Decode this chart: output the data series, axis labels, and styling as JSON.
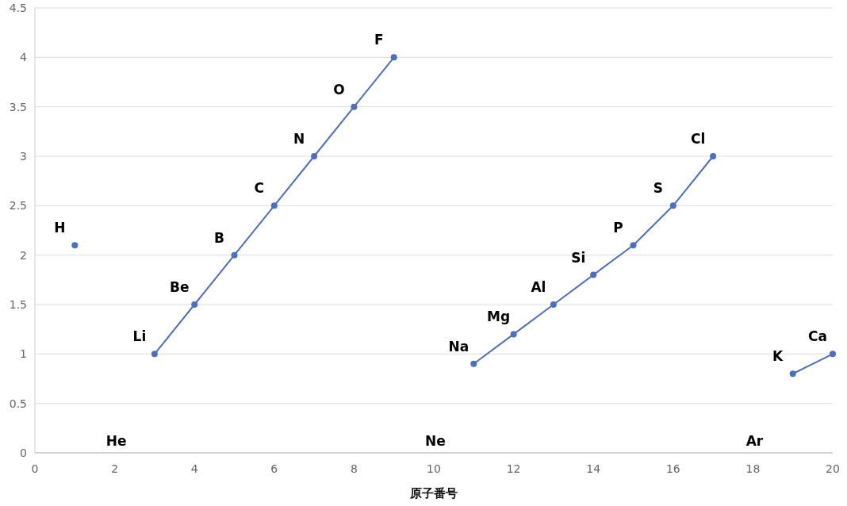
{
  "chart_data": {
    "type": "line",
    "xlabel": "原子番号",
    "x": [
      1,
      2,
      3,
      4,
      5,
      6,
      7,
      8,
      9,
      10,
      11,
      12,
      13,
      14,
      15,
      16,
      17,
      18,
      19,
      20
    ],
    "series": [
      {
        "color": "#4e6fbd",
        "values": [
          2.1,
          null,
          1.0,
          1.5,
          2.0,
          2.5,
          3.0,
          3.5,
          4.0,
          null,
          0.9,
          1.2,
          1.5,
          1.8,
          2.1,
          2.5,
          3.0,
          null,
          0.8,
          1.0
        ]
      }
    ],
    "xlim": [
      0,
      20
    ],
    "ylim": [
      0,
      4.5
    ],
    "xticks": [
      0,
      2,
      4,
      6,
      8,
      10,
      12,
      14,
      16,
      18,
      20
    ],
    "yticks": [
      0,
      0.5,
      1,
      1.5,
      2,
      2.5,
      3,
      3.5,
      4,
      4.5
    ],
    "grid": "y",
    "marker": "circle",
    "line_style": "solid",
    "annotations": [
      {
        "text": "H",
        "x": 1,
        "y": 2.1
      },
      "He",
      {
        "text": "Li",
        "x": 3,
        "y": 1.0
      },
      {
        "text": "Be",
        "x": 4,
        "y": 1.5
      },
      {
        "text": "B",
        "x": 5,
        "y": 2.0
      },
      {
        "text": "C",
        "x": 6,
        "y": 2.5
      },
      {
        "text": "N",
        "x": 7,
        "y": 3.0
      },
      {
        "text": "O",
        "x": 8,
        "y": 3.5
      },
      {
        "text": "F",
        "x": 9,
        "y": 4.0
      },
      "Ne",
      {
        "text": "Na",
        "x": 11,
        "y": 0.9
      },
      {
        "text": "Mg",
        "x": 12,
        "y": 1.2
      },
      {
        "text": "Al",
        "x": 13,
        "y": 1.5
      },
      {
        "text": "Si",
        "x": 14,
        "y": 1.8
      },
      {
        "text": "P",
        "x": 15,
        "y": 2.1
      },
      {
        "text": "S",
        "x": 16,
        "y": 2.5
      },
      {
        "text": "Cl",
        "x": 17,
        "y": 3.0
      },
      "Ar",
      {
        "text": "K",
        "x": 19,
        "y": 0.8
      },
      {
        "text": "Ca",
        "x": 20,
        "y": 1.0
      }
    ]
  }
}
